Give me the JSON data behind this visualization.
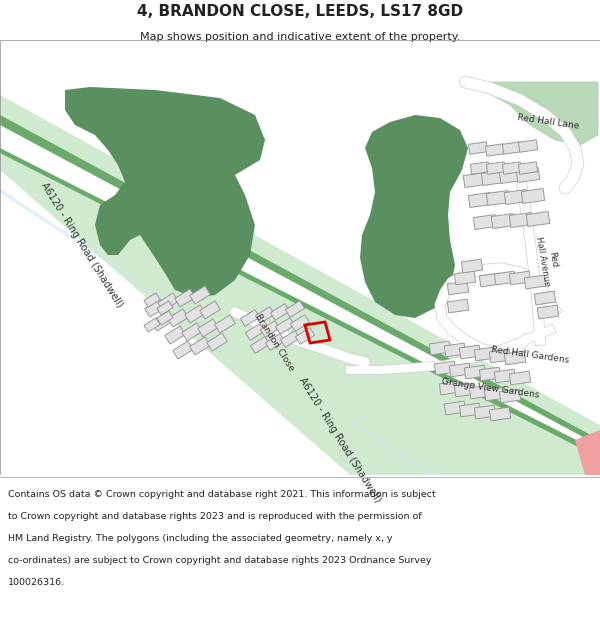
{
  "title": "4, BRANDON CLOSE, LEEDS, LS17 8GD",
  "subtitle": "Map shows position and indicative extent of the property.",
  "footer_lines": [
    "Contains OS data © Crown copyright and database right 2021. This information is subject",
    "to Crown copyright and database rights 2023 and is reproduced with the permission of",
    "HM Land Registry. The polygons (including the associated geometry, namely x, y",
    "co-ordinates) are subject to Crown copyright and database rights 2023 Ordnance Survey",
    "100026316."
  ],
  "bg_color": "#ffffff",
  "map_bg": "#f7f7f7",
  "road_green": "#6aaa6a",
  "road_green_light": "#d0ead0",
  "road_white": "#ffffff",
  "road_edge": "#5a9a5a",
  "building_fill": "#e0e0e0",
  "building_edge": "#aaaaaa",
  "green_dark": "#5a9060",
  "green_light": "#b8d8b8",
  "highlight": "#dd0000",
  "pink": "#f0a0a0",
  "light_blue": "#d0e8f0",
  "text_dark": "#222222",
  "road_text": "#333333"
}
